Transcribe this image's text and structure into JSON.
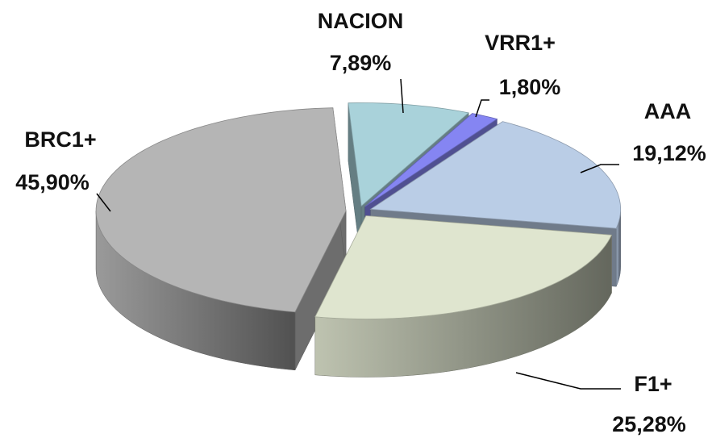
{
  "chart_data": {
    "type": "pie3d",
    "categories": [
      "NACION",
      "VRR1+",
      "AAA",
      "F1+",
      "BRC1+"
    ],
    "values": [
      7.89,
      1.8,
      19.12,
      25.28,
      45.9
    ],
    "value_labels": [
      "7,89%",
      "1,80%",
      "19,12%",
      "25,28%",
      "45,90%"
    ],
    "colors": [
      "#a9d2da",
      "#8585f2",
      "#bacde6",
      "#dfe5cf",
      "#b5b5b5"
    ]
  }
}
